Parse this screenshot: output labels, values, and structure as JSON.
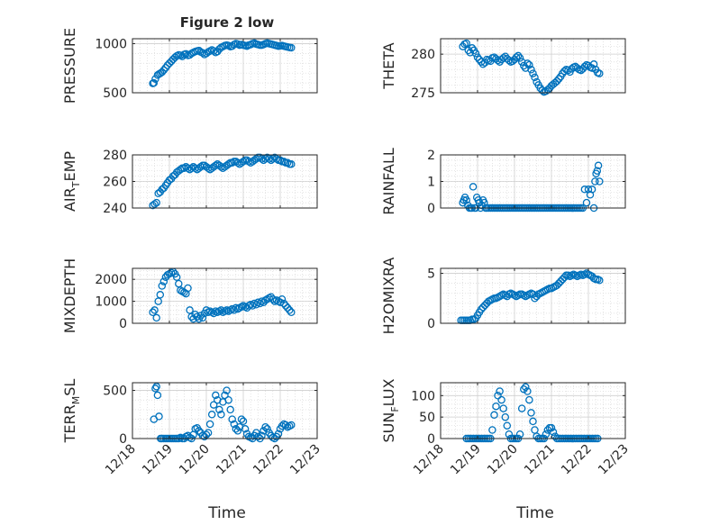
{
  "figure": {
    "title": "Figure 2 low",
    "xlabel": "Time",
    "x_tick_labels": [
      "12/18",
      "12/19",
      "12/20",
      "12/21",
      "12/22",
      "12/23"
    ],
    "marker_color": "#0072BD"
  },
  "chart_data": [
    {
      "type": "scatter",
      "title": "Figure 2 low",
      "ylabel": "PRESSURE",
      "xlim": [
        0,
        5
      ],
      "ylim": [
        500,
        1050
      ],
      "yticks": [
        500,
        1000
      ],
      "ytick_labels": [
        "500",
        "1000"
      ],
      "grid": true,
      "x": [
        0.55,
        0.58,
        0.62,
        0.68,
        0.72,
        0.76,
        0.8,
        0.85,
        0.9,
        0.95,
        1.0,
        1.05,
        1.1,
        1.15,
        1.2,
        1.25,
        1.3,
        1.35,
        1.4,
        1.45,
        1.5,
        1.55,
        1.6,
        1.65,
        1.7,
        1.75,
        1.8,
        1.85,
        1.9,
        1.95,
        2.0,
        2.05,
        2.1,
        2.15,
        2.2,
        2.25,
        2.3,
        2.35,
        2.4,
        2.45,
        2.5,
        2.55,
        2.6,
        2.65,
        2.7,
        2.75,
        2.8,
        2.85,
        2.9,
        2.95,
        3.0,
        3.05,
        3.1,
        3.15,
        3.2,
        3.25,
        3.3,
        3.35,
        3.4,
        3.45,
        3.5,
        3.55,
        3.6,
        3.65,
        3.7,
        3.75,
        3.8,
        3.85,
        3.9,
        3.95,
        4.0,
        4.05,
        4.1,
        4.15,
        4.2,
        4.25,
        4.3
      ],
      "y": [
        595,
        600,
        640,
        680,
        690,
        700,
        710,
        730,
        755,
        780,
        800,
        820,
        840,
        860,
        875,
        885,
        880,
        870,
        890,
        895,
        880,
        885,
        900,
        910,
        920,
        925,
        930,
        915,
        905,
        890,
        900,
        915,
        925,
        935,
        925,
        910,
        920,
        945,
        960,
        970,
        980,
        985,
        980,
        970,
        975,
        990,
        1000,
        995,
        985,
        990,
        985,
        980,
        975,
        985,
        990,
        1000,
        1005,
        995,
        990,
        985,
        985,
        990,
        1000,
        1005,
        1000,
        995,
        990,
        985,
        980,
        975,
        978,
        980,
        975,
        970,
        965,
        960,
        958
      ]
    },
    {
      "type": "scatter",
      "ylabel": "THETA",
      "xlim": [
        0,
        5
      ],
      "ylim": [
        275,
        282
      ],
      "yticks": [
        275,
        280
      ],
      "ytick_labels": [
        "275",
        "280"
      ],
      "grid": true,
      "x": [
        0.6,
        0.65,
        0.7,
        0.75,
        0.8,
        0.85,
        0.9,
        0.95,
        1.0,
        1.05,
        1.1,
        1.15,
        1.2,
        1.25,
        1.3,
        1.35,
        1.4,
        1.45,
        1.5,
        1.55,
        1.6,
        1.65,
        1.7,
        1.75,
        1.8,
        1.85,
        1.9,
        1.95,
        2.0,
        2.05,
        2.1,
        2.15,
        2.2,
        2.25,
        2.3,
        2.35,
        2.4,
        2.45,
        2.5,
        2.55,
        2.6,
        2.65,
        2.7,
        2.75,
        2.8,
        2.85,
        2.9,
        2.95,
        3.0,
        3.05,
        3.1,
        3.15,
        3.2,
        3.25,
        3.3,
        3.35,
        3.4,
        3.45,
        3.5,
        3.55,
        3.6,
        3.65,
        3.7,
        3.75,
        3.8,
        3.85,
        3.9,
        3.95,
        4.0,
        4.05,
        4.1,
        4.15,
        4.2,
        4.25,
        4.3
      ],
      "y": [
        281.0,
        281.3,
        281.4,
        280.5,
        280.2,
        280.8,
        280.5,
        280.1,
        279.6,
        279.3,
        279.0,
        278.7,
        278.9,
        279.3,
        279.2,
        279.1,
        279.5,
        279.6,
        279.4,
        279.2,
        279.0,
        279.3,
        279.5,
        279.7,
        279.4,
        279.2,
        279.0,
        279.1,
        279.3,
        279.6,
        279.8,
        279.5,
        279.0,
        278.5,
        278.2,
        278.8,
        278.6,
        278.0,
        277.5,
        277.0,
        276.4,
        276.0,
        275.6,
        275.3,
        275.1,
        275.2,
        275.4,
        275.6,
        275.9,
        276.1,
        276.3,
        276.5,
        276.8,
        277.1,
        277.5,
        277.8,
        278.0,
        277.9,
        277.7,
        278.1,
        278.3,
        278.4,
        278.2,
        278.0,
        277.9,
        278.1,
        278.4,
        278.6,
        278.5,
        278.3,
        278.2,
        278.7,
        278.0,
        277.6,
        277.5
      ]
    },
    {
      "type": "scatter",
      "ylabel": "AIR_TEMP",
      "xlim": [
        0,
        5
      ],
      "ylim": [
        240,
        280
      ],
      "yticks": [
        240,
        260,
        280
      ],
      "ytick_labels": [
        "240",
        "260",
        "280"
      ],
      "grid": true,
      "x": [
        0.55,
        0.6,
        0.65,
        0.7,
        0.75,
        0.8,
        0.85,
        0.9,
        0.95,
        1.0,
        1.05,
        1.1,
        1.15,
        1.2,
        1.25,
        1.3,
        1.35,
        1.4,
        1.45,
        1.5,
        1.55,
        1.6,
        1.65,
        1.7,
        1.75,
        1.8,
        1.85,
        1.9,
        1.95,
        2.0,
        2.05,
        2.1,
        2.15,
        2.2,
        2.25,
        2.3,
        2.35,
        2.4,
        2.45,
        2.5,
        2.55,
        2.6,
        2.65,
        2.7,
        2.75,
        2.8,
        2.85,
        2.9,
        2.95,
        3.0,
        3.05,
        3.1,
        3.15,
        3.2,
        3.25,
        3.3,
        3.35,
        3.4,
        3.45,
        3.5,
        3.55,
        3.6,
        3.65,
        3.7,
        3.75,
        3.8,
        3.85,
        3.9,
        3.95,
        4.0,
        4.05,
        4.1,
        4.15,
        4.2,
        4.25,
        4.3
      ],
      "y": [
        242,
        243,
        244,
        251,
        252,
        254,
        255,
        257,
        259,
        261,
        262,
        264,
        265,
        267,
        268,
        269,
        270,
        270,
        271,
        270,
        269,
        270,
        271,
        270,
        269,
        270,
        271,
        272,
        272,
        271,
        270,
        269,
        270,
        271,
        272,
        273,
        272,
        271,
        270,
        271,
        272,
        273,
        274,
        274,
        275,
        275,
        274,
        273,
        274,
        275,
        276,
        276,
        275,
        274,
        275,
        276,
        277,
        278,
        278,
        277,
        276,
        277,
        278,
        277,
        276,
        277,
        278,
        277,
        276,
        276,
        275,
        275,
        274,
        274,
        273,
        273
      ]
    },
    {
      "type": "scatter",
      "ylabel": "RAINFALL",
      "xlim": [
        0,
        5
      ],
      "ylim": [
        0,
        2
      ],
      "yticks": [
        0,
        1,
        2
      ],
      "ytick_labels": [
        "0",
        "1",
        "2"
      ],
      "grid": true,
      "x": [
        0.6,
        0.63,
        0.66,
        0.7,
        0.74,
        0.78,
        0.82,
        0.85,
        0.88,
        0.92,
        0.95,
        0.98,
        1.02,
        1.05,
        1.08,
        1.12,
        1.15,
        1.18,
        1.22,
        1.25,
        1.3,
        1.35,
        1.4,
        1.45,
        1.5,
        1.55,
        1.6,
        1.65,
        1.7,
        1.75,
        1.8,
        1.85,
        1.9,
        1.95,
        2.0,
        2.05,
        2.1,
        2.15,
        2.2,
        2.25,
        2.3,
        2.35,
        2.4,
        2.45,
        2.5,
        2.55,
        2.6,
        2.65,
        2.7,
        2.75,
        2.8,
        2.85,
        2.9,
        2.95,
        3.0,
        3.05,
        3.1,
        3.15,
        3.2,
        3.25,
        3.3,
        3.35,
        3.4,
        3.45,
        3.5,
        3.55,
        3.6,
        3.65,
        3.7,
        3.75,
        3.8,
        3.85,
        3.9,
        3.95,
        4.0,
        4.05,
        4.1,
        4.15,
        4.18,
        4.21,
        4.24,
        4.27,
        4.3
      ],
      "y": [
        0.2,
        0.3,
        0.4,
        0.3,
        0.1,
        0,
        0,
        0,
        0.8,
        0,
        0,
        0.4,
        0.3,
        0.2,
        0,
        0.1,
        0.3,
        0.2,
        0,
        0,
        0,
        0,
        0,
        0,
        0,
        0,
        0,
        0,
        0,
        0,
        0,
        0,
        0,
        0,
        0,
        0,
        0,
        0,
        0,
        0,
        0,
        0,
        0,
        0,
        0,
        0,
        0,
        0,
        0,
        0,
        0,
        0,
        0,
        0,
        0,
        0,
        0,
        0,
        0,
        0,
        0,
        0,
        0,
        0,
        0,
        0,
        0,
        0,
        0,
        0,
        0,
        0,
        0.7,
        0.2,
        0.7,
        0.5,
        0.7,
        0,
        1.0,
        1.3,
        1.4,
        1.6,
        1.0
      ]
    },
    {
      "type": "scatter",
      "ylabel": "MIXDEPTH",
      "xlim": [
        0,
        5
      ],
      "ylim": [
        0,
        2500
      ],
      "yticks": [
        0,
        1000,
        2000
      ],
      "ytick_labels": [
        "0",
        "1000",
        "2000"
      ],
      "grid": true,
      "x": [
        0.55,
        0.6,
        0.65,
        0.7,
        0.75,
        0.8,
        0.85,
        0.9,
        0.95,
        1.0,
        1.05,
        1.1,
        1.15,
        1.2,
        1.25,
        1.3,
        1.35,
        1.4,
        1.45,
        1.5,
        1.55,
        1.6,
        1.65,
        1.7,
        1.75,
        1.8,
        1.85,
        1.9,
        1.95,
        2.0,
        2.05,
        2.1,
        2.15,
        2.2,
        2.25,
        2.3,
        2.35,
        2.4,
        2.45,
        2.5,
        2.55,
        2.6,
        2.65,
        2.7,
        2.75,
        2.8,
        2.85,
        2.9,
        2.95,
        3.0,
        3.05,
        3.1,
        3.15,
        3.2,
        3.25,
        3.3,
        3.35,
        3.4,
        3.45,
        3.5,
        3.55,
        3.6,
        3.65,
        3.7,
        3.75,
        3.8,
        3.85,
        3.9,
        3.95,
        4.0,
        4.05,
        4.1,
        4.15,
        4.2,
        4.25,
        4.3
      ],
      "y": [
        500,
        600,
        250,
        1000,
        1300,
        1700,
        1900,
        2100,
        2200,
        2250,
        2300,
        2350,
        2250,
        2100,
        1800,
        1500,
        1450,
        1400,
        1350,
        1600,
        600,
        300,
        200,
        400,
        300,
        200,
        350,
        250,
        450,
        600,
        500,
        550,
        500,
        450,
        550,
        500,
        550,
        600,
        500,
        550,
        600,
        550,
        600,
        650,
        600,
        700,
        650,
        700,
        750,
        800,
        750,
        700,
        800,
        850,
        800,
        900,
        850,
        950,
        900,
        1000,
        950,
        1050,
        1100,
        1150,
        1200,
        1100,
        1000,
        1050,
        1000,
        950,
        1100,
        900,
        800,
        700,
        600,
        500
      ]
    },
    {
      "type": "scatter",
      "ylabel": "H2OMIXRA",
      "xlim": [
        0,
        5
      ],
      "ylim": [
        0,
        5.5
      ],
      "yticks": [
        0,
        5
      ],
      "ytick_labels": [
        "0",
        "5"
      ],
      "grid": true,
      "x": [
        0.55,
        0.6,
        0.65,
        0.7,
        0.75,
        0.8,
        0.85,
        0.9,
        0.95,
        1.0,
        1.05,
        1.1,
        1.15,
        1.2,
        1.25,
        1.3,
        1.35,
        1.4,
        1.45,
        1.5,
        1.55,
        1.6,
        1.65,
        1.7,
        1.75,
        1.8,
        1.85,
        1.9,
        1.95,
        2.0,
        2.05,
        2.1,
        2.15,
        2.2,
        2.25,
        2.3,
        2.35,
        2.4,
        2.45,
        2.5,
        2.55,
        2.6,
        2.65,
        2.7,
        2.75,
        2.8,
        2.85,
        2.9,
        2.95,
        3.0,
        3.05,
        3.1,
        3.15,
        3.2,
        3.25,
        3.3,
        3.35,
        3.4,
        3.45,
        3.5,
        3.55,
        3.6,
        3.65,
        3.7,
        3.75,
        3.8,
        3.85,
        3.9,
        3.95,
        4.0,
        4.05,
        4.1,
        4.15,
        4.2,
        4.25,
        4.3
      ],
      "y": [
        0.3,
        0.3,
        0.3,
        0.3,
        0.3,
        0.3,
        0.4,
        0.4,
        0.5,
        0.8,
        1.1,
        1.4,
        1.6,
        1.8,
        2.0,
        2.2,
        2.3,
        2.4,
        2.5,
        2.5,
        2.6,
        2.7,
        2.8,
        2.9,
        2.8,
        2.7,
        2.9,
        3.0,
        2.9,
        2.8,
        2.7,
        2.8,
        2.9,
        2.9,
        2.8,
        2.7,
        2.8,
        2.9,
        3.0,
        2.9,
        2.5,
        2.7,
        2.9,
        3.0,
        3.1,
        3.2,
        3.3,
        3.4,
        3.5,
        3.5,
        3.6,
        3.7,
        3.8,
        4.0,
        4.2,
        4.4,
        4.6,
        4.8,
        4.8,
        4.7,
        4.8,
        4.9,
        4.8,
        4.7,
        4.8,
        4.9,
        4.8,
        4.9,
        5.0,
        4.9,
        4.8,
        4.7,
        4.5,
        4.4,
        4.4,
        4.3
      ]
    },
    {
      "type": "scatter",
      "ylabel": "TERR_MSL",
      "xlim": [
        0,
        5
      ],
      "ylim": [
        0,
        580
      ],
      "yticks": [
        0,
        500
      ],
      "ytick_labels": [
        "0",
        "500"
      ],
      "grid": true,
      "x": [
        0.58,
        0.62,
        0.65,
        0.68,
        0.72,
        0.76,
        0.8,
        0.85,
        0.9,
        0.95,
        1.0,
        1.05,
        1.1,
        1.15,
        1.2,
        1.25,
        1.3,
        1.35,
        1.4,
        1.45,
        1.5,
        1.55,
        1.6,
        1.65,
        1.7,
        1.75,
        1.8,
        1.85,
        1.9,
        1.95,
        2.0,
        2.05,
        2.1,
        2.15,
        2.2,
        2.25,
        2.3,
        2.35,
        2.4,
        2.45,
        2.5,
        2.55,
        2.6,
        2.65,
        2.7,
        2.75,
        2.8,
        2.85,
        2.9,
        2.95,
        3.0,
        3.05,
        3.1,
        3.15,
        3.2,
        3.25,
        3.3,
        3.35,
        3.4,
        3.45,
        3.5,
        3.55,
        3.6,
        3.65,
        3.7,
        3.75,
        3.8,
        3.85,
        3.9,
        3.95,
        4.0,
        4.05,
        4.1,
        4.15,
        4.2,
        4.25,
        4.3
      ],
      "y": [
        200,
        520,
        540,
        450,
        230,
        0,
        0,
        0,
        0,
        0,
        0,
        0,
        0,
        0,
        0,
        0,
        10,
        0,
        0,
        20,
        30,
        10,
        0,
        40,
        100,
        110,
        80,
        60,
        30,
        20,
        40,
        60,
        150,
        250,
        350,
        450,
        400,
        300,
        250,
        380,
        450,
        500,
        400,
        300,
        200,
        150,
        100,
        80,
        120,
        200,
        180,
        100,
        50,
        20,
        10,
        0,
        30,
        60,
        20,
        0,
        30,
        80,
        120,
        100,
        60,
        30,
        10,
        0,
        20,
        50,
        100,
        130,
        150,
        140,
        120,
        130,
        140
      ]
    },
    {
      "type": "scatter",
      "ylabel": "SUN_FLUX",
      "xlim": [
        0,
        5
      ],
      "ylim": [
        0,
        130
      ],
      "yticks": [
        0,
        50,
        100
      ],
      "ytick_labels": [
        "0",
        "50",
        "100"
      ],
      "grid": true,
      "x": [
        0.7,
        0.75,
        0.8,
        0.85,
        0.9,
        0.95,
        1.0,
        1.05,
        1.1,
        1.15,
        1.2,
        1.25,
        1.3,
        1.35,
        1.4,
        1.45,
        1.5,
        1.55,
        1.6,
        1.65,
        1.7,
        1.75,
        1.8,
        1.85,
        1.9,
        1.95,
        2.0,
        2.05,
        2.1,
        2.15,
        2.2,
        2.25,
        2.3,
        2.35,
        2.4,
        2.45,
        2.5,
        2.55,
        2.6,
        2.65,
        2.7,
        2.75,
        2.8,
        2.85,
        2.9,
        2.95,
        3.0,
        3.05,
        3.1,
        3.15,
        3.2,
        3.25,
        3.3,
        3.35,
        3.4,
        3.45,
        3.5,
        3.55,
        3.6,
        3.65,
        3.7,
        3.75,
        3.8,
        3.85,
        3.9,
        3.95,
        4.0,
        4.05,
        4.1,
        4.15,
        4.2,
        4.25
      ],
      "y": [
        0,
        0,
        0,
        0,
        0,
        0,
        0,
        0,
        0,
        0,
        0,
        0,
        0,
        0,
        20,
        55,
        75,
        100,
        110,
        90,
        70,
        50,
        30,
        10,
        0,
        0,
        0,
        0,
        0,
        10,
        70,
        115,
        120,
        110,
        90,
        60,
        40,
        20,
        5,
        0,
        0,
        0,
        0,
        10,
        20,
        25,
        25,
        15,
        5,
        0,
        0,
        0,
        0,
        0,
        0,
        0,
        0,
        0,
        0,
        0,
        0,
        0,
        0,
        0,
        0,
        0,
        0,
        0,
        0,
        0,
        0,
        0
      ]
    }
  ]
}
